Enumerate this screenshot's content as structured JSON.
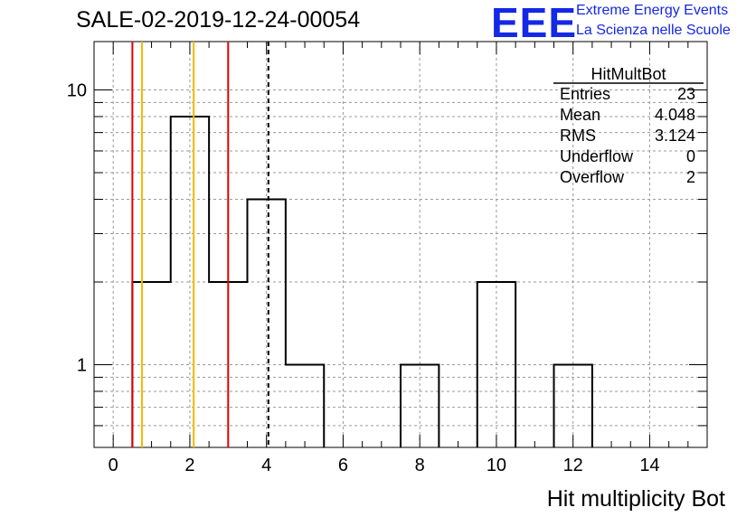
{
  "header": {
    "run_title": "SALE-02-2019-12-24-00054",
    "logo_text": "EEE",
    "logo_line1": "Extreme Energy Events",
    "logo_line2": "La Scienza nelle Scuole",
    "logo_color": "#1428e6"
  },
  "chart_data": {
    "type": "histogram",
    "title": "HitMultBot",
    "xlabel": "Hit multiplicity Bot",
    "ylabel": "",
    "yscale": "log",
    "xlim": [
      -0.5,
      15.5
    ],
    "ylim": [
      0.5,
      15
    ],
    "grid": true,
    "x_ticks": [
      "0",
      "2",
      "4",
      "6",
      "8",
      "10",
      "12",
      "14"
    ],
    "y_ticks": [
      "1",
      "10"
    ],
    "bins": [
      {
        "low": 0.5,
        "high": 1.5,
        "count": 2
      },
      {
        "low": 1.5,
        "high": 2.5,
        "count": 8
      },
      {
        "low": 2.5,
        "high": 3.5,
        "count": 2
      },
      {
        "low": 3.5,
        "high": 4.5,
        "count": 4
      },
      {
        "low": 4.5,
        "high": 5.5,
        "count": 1
      },
      {
        "low": 7.5,
        "high": 8.5,
        "count": 1
      },
      {
        "low": 9.5,
        "high": 10.5,
        "count": 2
      },
      {
        "low": 11.5,
        "high": 12.5,
        "count": 1
      }
    ],
    "markers": [
      {
        "x": 0.5,
        "color": "#e00000",
        "style": "solid"
      },
      {
        "x": 0.75,
        "color": "#f5b800",
        "style": "solid"
      },
      {
        "x": 2.1,
        "color": "#f5b800",
        "style": "solid"
      },
      {
        "x": 3.0,
        "color": "#e00000",
        "style": "solid"
      },
      {
        "x": 4.05,
        "color": "#000000",
        "style": "dashed"
      }
    ],
    "stats": {
      "title": "HitMultBot",
      "rows": [
        {
          "label": "Entries",
          "value": "23"
        },
        {
          "label": "Mean",
          "value": "4.048"
        },
        {
          "label": "RMS",
          "value": "3.124"
        },
        {
          "label": "Underflow",
          "value": "0"
        },
        {
          "label": "Overflow",
          "value": "2"
        }
      ]
    }
  }
}
